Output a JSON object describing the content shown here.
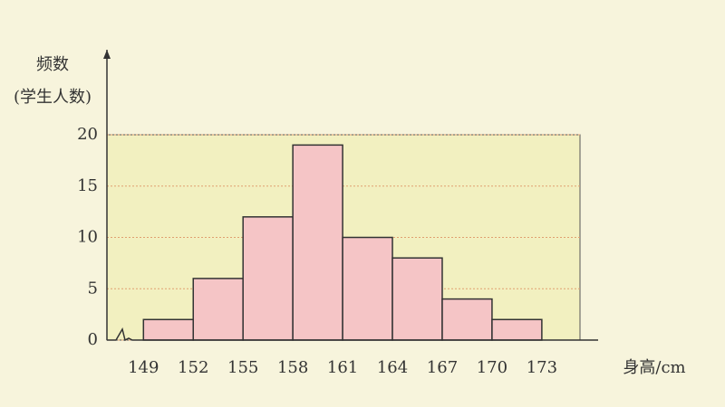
{
  "chart_data": {
    "type": "histogram",
    "ylabel": [
      "频数",
      "(学生人数)"
    ],
    "xlabel": "身高/cm",
    "bins": [
      149,
      152,
      155,
      158,
      161,
      164,
      167,
      170,
      173
    ],
    "values": [
      2,
      6,
      12,
      19,
      10,
      8,
      4,
      2
    ],
    "color": "#f5c5c6",
    "xlim": [
      146.8,
      175.3
    ],
    "xticks": [
      149,
      152,
      155,
      158,
      161,
      164,
      167,
      170,
      173
    ],
    "ylim": [
      0,
      20
    ],
    "yticks": [
      0,
      5,
      10,
      15,
      20
    ],
    "grid": true
  }
}
